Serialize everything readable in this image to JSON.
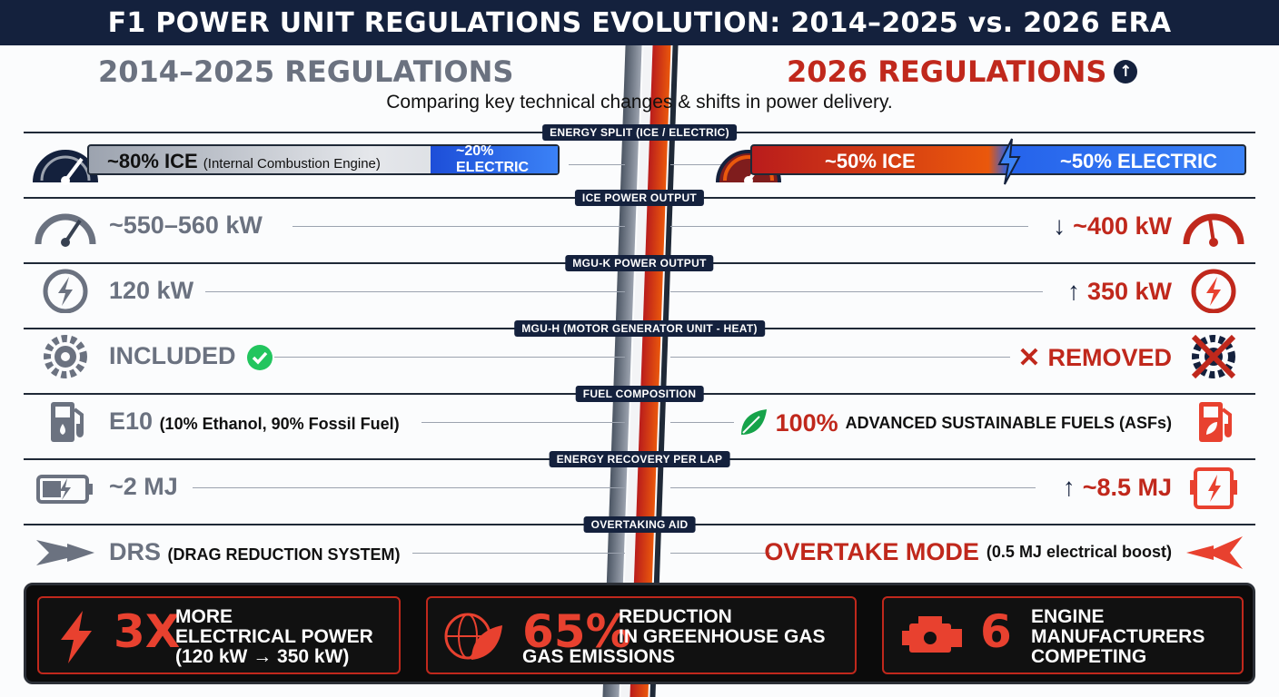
{
  "title": "F1 POWER UNIT REGULATIONS EVOLUTION: 2014–2025 vs. 2026 ERA",
  "header": {
    "left": "2014–2025 REGULATIONS",
    "right": "2026 REGULATIONS",
    "subtitle": "Comparing key technical changes & shifts in power delivery."
  },
  "rows": {
    "energy": {
      "label": "ENERGY SPLIT (ICE / ELECTRIC)",
      "left_main": "~80% ICE",
      "left_sub": "(Internal Combustion Engine)",
      "left_electric": "~20% ELECTRIC",
      "right_ice": "~50% ICE",
      "right_electric": "~50% ELECTRIC"
    },
    "ice": {
      "label": "ICE POWER OUTPUT",
      "left": "~550–560 kW",
      "right_arrow": "↓",
      "right": "~400 kW"
    },
    "mguk": {
      "label": "MGU-K POWER OUTPUT",
      "left": "120 kW",
      "right_arrow": "↑",
      "right": "350 kW"
    },
    "mguh": {
      "label": "MGU-H (MOTOR GENERATOR UNIT - HEAT)",
      "left": "INCLUDED",
      "right": "REMOVED"
    },
    "fuel": {
      "label": "FUEL COMPOSITION",
      "left": "E10",
      "left_sub": "(10% Ethanol, 90% Fossil Fuel)",
      "right": "100%",
      "right_sub": "ADVANCED SUSTAINABLE FUELS (ASFs)"
    },
    "recovery": {
      "label": "ENERGY RECOVERY PER LAP",
      "left": "~2 MJ",
      "right_arrow": "↑",
      "right": "~8.5 MJ"
    },
    "overtake": {
      "label": "OVERTAKING AID",
      "left": "DRS",
      "left_sub": "(DRAG REDUCTION SYSTEM)",
      "right": "OVERTAKE MODE",
      "right_sub": "(0.5 MJ electrical boost)"
    }
  },
  "stats": [
    {
      "big": "3X",
      "line1": "MORE",
      "line2": "ELECTRICAL POWER",
      "line3": "(120 kW → 350 kW)"
    },
    {
      "big": "65%",
      "line1": "REDUCTION",
      "line2": "IN GREENHOUSE GAS",
      "line3": "GAS EMISSIONS"
    },
    {
      "big": "6",
      "line1": "ENGINE",
      "line2": "MANUFACTURERS",
      "line3": "COMPETING"
    }
  ],
  "colors": {
    "navy": "#14213d",
    "red": "#c0281c",
    "gray": "#6b7280",
    "blue": "#2563eb",
    "green": "#22c55e"
  }
}
